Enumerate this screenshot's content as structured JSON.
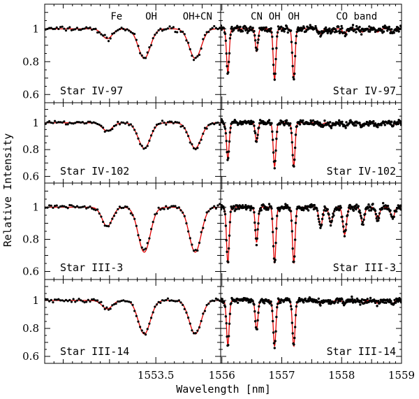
{
  "chart_data": {
    "type": "line",
    "xlabel": "Wavelength [nm]",
    "ylabel": "Relative Intensity",
    "rows": [
      "Star IV-97",
      "Star IV-102",
      "Star III-3",
      "Star III-14"
    ],
    "ylim": [
      0.55,
      1.15
    ],
    "yticks": [
      0.6,
      0.8,
      1
    ],
    "ytick_labels": [
      "0.6",
      "0.8",
      "1"
    ],
    "columns": [
      {
        "xlim": [
          1553.26,
          1553.64
        ],
        "xticks_major": [
          1553.5
        ],
        "xtick_labels": [
          "1553.5"
        ],
        "annotations": [
          {
            "label": "Fe",
            "x": 1553.415
          },
          {
            "label": "OH",
            "x": 1553.49
          },
          {
            "label": "OH+CN",
            "x": 1553.59
          }
        ]
      },
      {
        "xlim": [
          1555.98,
          1559.0
        ],
        "xticks_major": [
          1556,
          1557,
          1558,
          1559
        ],
        "xtick_labels": [
          "1556",
          "1557",
          "1558",
          "1559"
        ],
        "annotations": [
          {
            "label": "CN",
            "x": 1556.58
          },
          {
            "label": "OH",
            "x": 1556.88
          },
          {
            "label": "OH",
            "x": 1557.2
          },
          {
            "label": "CO band",
            "x": 1558.25
          }
        ]
      }
    ],
    "series": [
      {
        "name": "observed",
        "style": "black dots",
        "color": "#000000"
      },
      {
        "name": "synthetic",
        "style": "red line",
        "color": "#e00000"
      }
    ],
    "lines_left": [
      {
        "center": 1553.395,
        "width": 0.011,
        "depth": [
          0.06,
          0.06,
          0.12,
          0.06
        ]
      },
      {
        "center": 1553.475,
        "width": 0.013,
        "depth": [
          0.18,
          0.19,
          0.28,
          0.24
        ]
      },
      {
        "center": 1553.585,
        "width": 0.013,
        "depth": [
          0.18,
          0.19,
          0.28,
          0.24
        ]
      }
    ],
    "lines_right": [
      {
        "center": 1556.1,
        "width": 0.022,
        "depth": [
          0.27,
          0.27,
          0.35,
          0.32
        ]
      },
      {
        "center": 1556.58,
        "width": 0.022,
        "depth": [
          0.14,
          0.14,
          0.22,
          0.21
        ]
      },
      {
        "center": 1556.88,
        "width": 0.022,
        "depth": [
          0.31,
          0.33,
          0.35,
          0.33
        ]
      },
      {
        "center": 1557.2,
        "width": 0.022,
        "depth": [
          0.31,
          0.33,
          0.35,
          0.33
        ]
      },
      {
        "center": 1557.65,
        "width": 0.03,
        "depth": [
          0.03,
          0.02,
          0.12,
          0.02
        ]
      },
      {
        "center": 1557.82,
        "width": 0.03,
        "depth": [
          0.02,
          0.02,
          0.1,
          0.02
        ]
      },
      {
        "center": 1558.05,
        "width": 0.03,
        "depth": [
          0.03,
          0.03,
          0.17,
          0.02
        ]
      },
      {
        "center": 1558.35,
        "width": 0.03,
        "depth": [
          0.02,
          0.02,
          0.1,
          0.02
        ]
      },
      {
        "center": 1558.6,
        "width": 0.03,
        "depth": [
          0.02,
          0.02,
          0.08,
          0.02
        ]
      },
      {
        "center": 1558.85,
        "width": 0.03,
        "depth": [
          0.02,
          0.02,
          0.07,
          0.02
        ]
      }
    ],
    "grid": false,
    "legend": "none"
  }
}
